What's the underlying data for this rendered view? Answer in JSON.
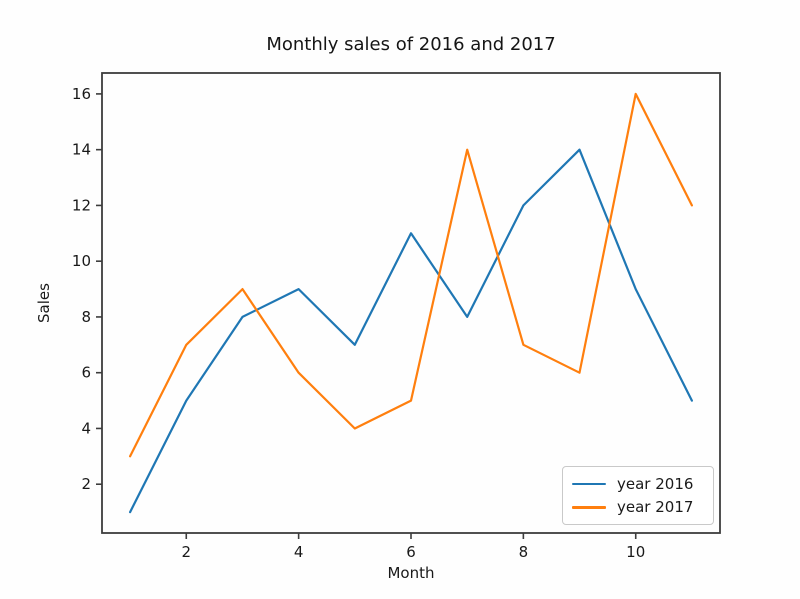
{
  "figure": {
    "title": "Monthly sales of 2016 and 2017",
    "xlabel": "Month",
    "ylabel": "Sales"
  },
  "legend": {
    "position": "lower right",
    "items": [
      {
        "label": "year 2016",
        "color": "#1f77b4"
      },
      {
        "label": "year 2017",
        "color": "#ff7f0e"
      }
    ]
  },
  "chart_data": {
    "type": "line",
    "title": "Monthly sales of 2016 and 2017",
    "xlabel": "Month",
    "ylabel": "Sales",
    "x": [
      1,
      2,
      3,
      4,
      5,
      6,
      7,
      8,
      9,
      10,
      11
    ],
    "series": [
      {
        "name": "year 2016",
        "color": "#1f77b4",
        "values": [
          1,
          5,
          8,
          9,
          7,
          11,
          8,
          12,
          14,
          9,
          5
        ]
      },
      {
        "name": "year 2017",
        "color": "#ff7f0e",
        "values": [
          3,
          7,
          9,
          6,
          4,
          5,
          14,
          7,
          6,
          16,
          12
        ]
      }
    ],
    "xlim": [
      0.5,
      11.5
    ],
    "ylim": [
      0.25,
      16.75
    ],
    "xticks": [
      2,
      4,
      6,
      8,
      10
    ],
    "yticks": [
      2,
      4,
      6,
      8,
      10,
      12,
      14,
      16
    ],
    "grid": false,
    "legend_position": "lower right",
    "colors": {
      "spine": "#3c3c3c",
      "tick_label": "#191919",
      "background": "#fefefe"
    }
  }
}
